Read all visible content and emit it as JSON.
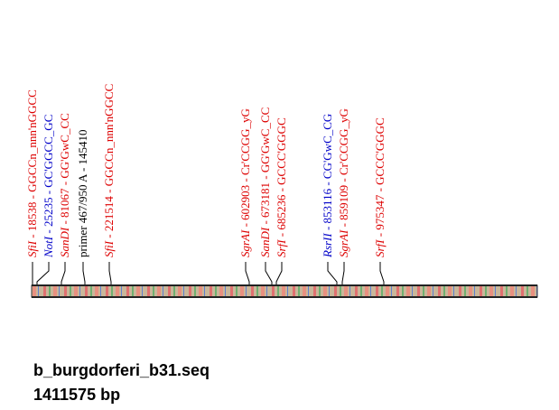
{
  "sites": [
    {
      "name": "SfiI",
      "rest": " - 18538 - GGCCn_nnn'nGGCC",
      "color": "#dd0000"
    },
    {
      "name": "NotI",
      "rest": " - 25235 - GC'GGCC_GC",
      "color": "#0000c8"
    },
    {
      "name": "SanDI",
      "rest": " - 81067 - GG'GwC_CC",
      "color": "#dd0000"
    },
    {
      "text": "primer 467/950 A - 145410",
      "color": "#000000"
    },
    {
      "name": "SfiI",
      "rest": " - 221514 - GGCCn_nnn'nGGCC",
      "color": "#dd0000"
    },
    {
      "name": "SgrAI",
      "rest": " - 602903 - Cr'CCGG_yG",
      "color": "#dd0000"
    },
    {
      "name": "SanDI",
      "rest": " - 673181 - GG'GwC_CC",
      "color": "#dd0000"
    },
    {
      "name": "SrfI",
      "rest": " - 685236 - GCCC'GGGC",
      "color": "#dd0000"
    },
    {
      "name": "RsrII",
      "rest": " - 853116 - CG'GwC_CG",
      "color": "#0000c8"
    },
    {
      "name": "SgrAI",
      "rest": " - 859109 - Cr'CCGG_yG",
      "color": "#dd0000"
    },
    {
      "name": "SrfI",
      "rest": " - 975347 - GCCC'GGGC",
      "color": "#dd0000"
    }
  ],
  "sequence": {
    "title": "b_burgdorferi_b31.seq",
    "length": "1411575 bp"
  }
}
